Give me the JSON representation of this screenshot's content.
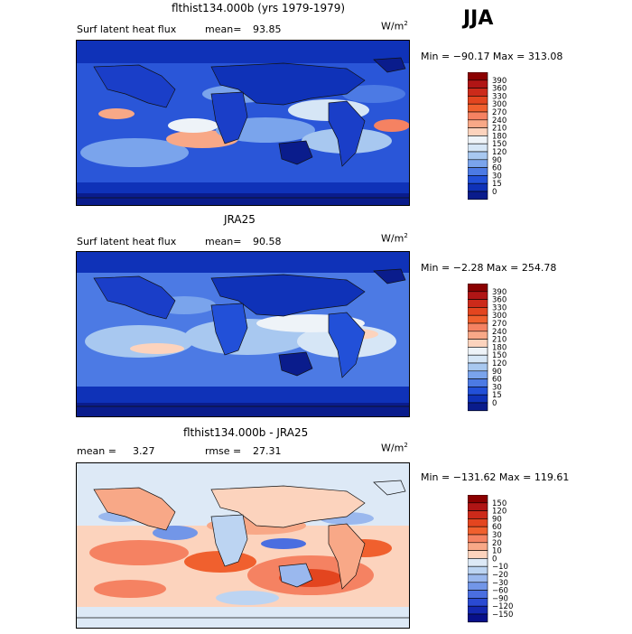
{
  "season": "JJA",
  "panels": [
    {
      "title": "flthist134.000b (yrs 1979-1979)",
      "left_label": "Surf latent heat flux",
      "stat_label": "mean=",
      "stat_value": "93.85",
      "units_base": "W/m",
      "units_exp": "2",
      "minmax": "Min = −90.17 Max = 313.08",
      "colorbar_labels": [
        "390",
        "360",
        "330",
        "300",
        "270",
        "240",
        "210",
        "180",
        "150",
        "120",
        "90",
        "60",
        "30",
        "15",
        "0"
      ],
      "colorbar_colors": [
        "#8b0000",
        "#b01515",
        "#cc2a1a",
        "#e3451f",
        "#f0602e",
        "#f58262",
        "#f8a887",
        "#fcd3bd",
        "#eef3f8",
        "#d6e6f6",
        "#a8c8f0",
        "#7aa4ec",
        "#4c7ae4",
        "#2250d8",
        "#0f32b8",
        "#0a1c8c"
      ]
    },
    {
      "title": "JRA25",
      "left_label": "Surf latent heat flux",
      "stat_label": "mean=",
      "stat_value": "90.58",
      "units_base": "W/m",
      "units_exp": "2",
      "minmax": "Min =   −2.28 Max = 254.78",
      "colorbar_labels": [
        "390",
        "360",
        "330",
        "300",
        "270",
        "240",
        "210",
        "180",
        "150",
        "120",
        "90",
        "60",
        "30",
        "15",
        "0"
      ],
      "colorbar_colors": [
        "#8b0000",
        "#b01515",
        "#cc2a1a",
        "#e3451f",
        "#f0602e",
        "#f58262",
        "#f8a887",
        "#fcd3bd",
        "#eef3f8",
        "#d6e6f6",
        "#a8c8f0",
        "#7aa4ec",
        "#4c7ae4",
        "#2250d8",
        "#0f32b8",
        "#0a1c8c"
      ]
    },
    {
      "title": "flthist134.000b - JRA25",
      "left_label": "mean =",
      "left_value": "3.27",
      "stat_label": "rmse =",
      "stat_value": "27.31",
      "units_base": "W/m",
      "units_exp": "2",
      "minmax": "Min = −131.62 Max = 119.61",
      "colorbar_labels": [
        "150",
        "120",
        "90",
        "60",
        "30",
        "20",
        "10",
        "0",
        "−10",
        "−20",
        "−30",
        "−60",
        "−90",
        "−120",
        "−150"
      ],
      "colorbar_colors": [
        "#8b0000",
        "#b01515",
        "#cc2a1a",
        "#e3451f",
        "#f0602e",
        "#f58262",
        "#f8a887",
        "#fcd3bd",
        "#dde9f6",
        "#bcd4f2",
        "#9ab8ee",
        "#7296e8",
        "#4a6ee0",
        "#2a4ad2",
        "#1428b0",
        "#08108a"
      ]
    }
  ]
}
